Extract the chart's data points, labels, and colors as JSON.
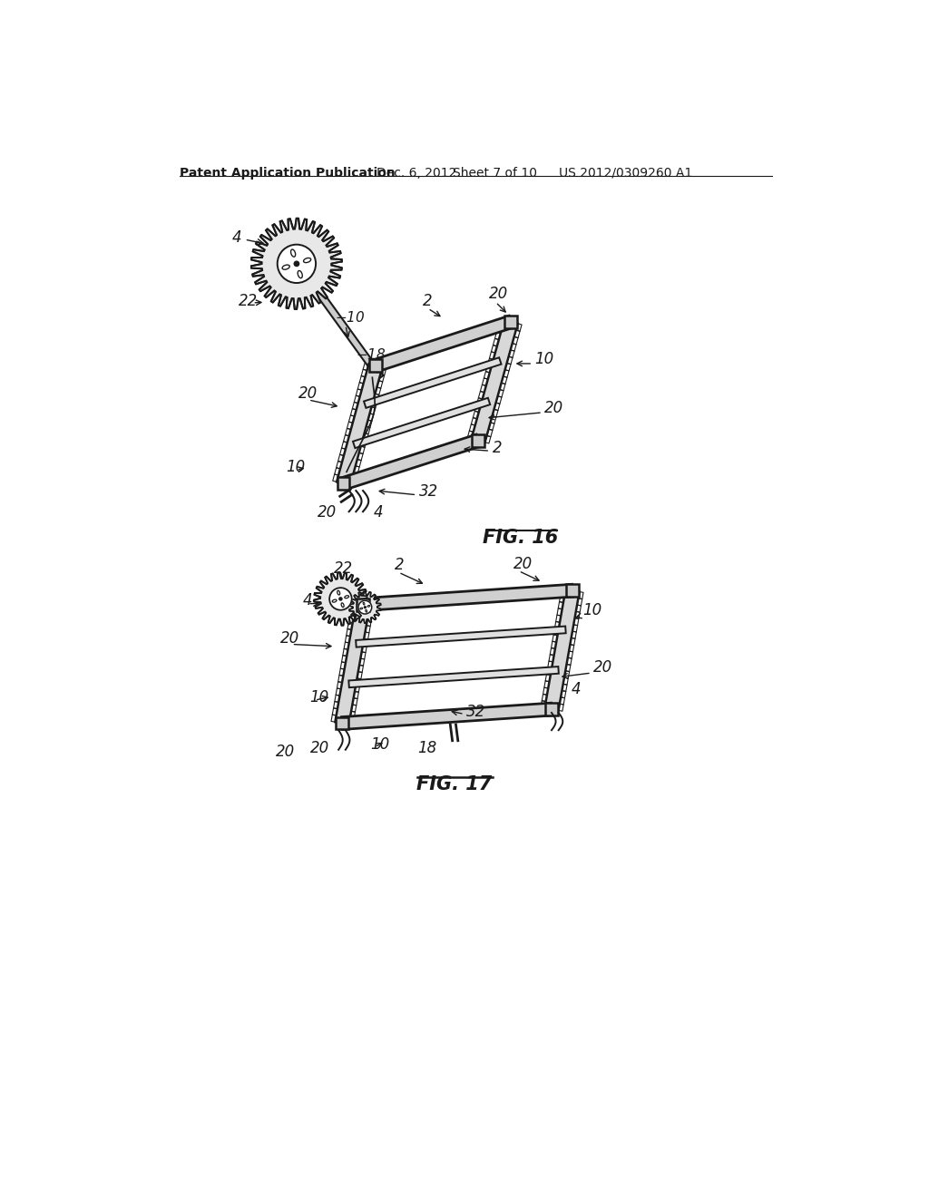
{
  "background_color": "#ffffff",
  "header_text": "Patent Application Publication",
  "header_date": "Dec. 6, 2012",
  "header_sheet": "Sheet 7 of 10",
  "header_patent": "US 2012/0309260 A1",
  "fig16_caption": "FIG. 16",
  "fig17_caption": "FIG. 17",
  "line_color": "#1a1a1a",
  "font_size_header": 10,
  "font_size_label": 11,
  "font_size_caption": 15
}
